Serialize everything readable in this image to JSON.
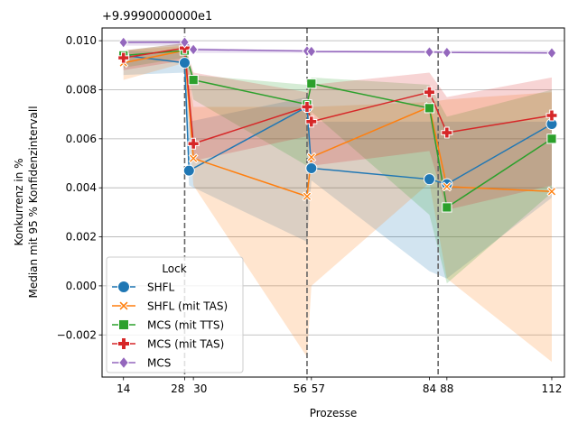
{
  "chart_data": {
    "type": "line",
    "offset_label": "+9.9990000000e1",
    "xlabel": "Prozesse",
    "ylabel_line1": "Konkurrenz in %",
    "ylabel_line2": "Median mit 95 % Konfidenzintervall",
    "x_ticks": [
      14,
      28,
      30,
      56,
      57,
      84,
      88,
      112
    ],
    "x_tick_labels": [
      "14",
      "28",
      "30",
      "56",
      "57",
      "84",
      "88",
      "112"
    ],
    "y_ticks": [
      -0.002,
      0.0,
      0.002,
      0.004,
      0.006,
      0.008,
      0.01
    ],
    "y_tick_labels": [
      "−0.002",
      "0.000",
      "0.002",
      "0.004",
      "0.006",
      "0.008",
      "0.010"
    ],
    "xlim": [
      9.1,
      114.9
    ],
    "ylim": [
      -0.00372,
      0.01052
    ],
    "vlines": [
      28,
      56,
      86
    ],
    "grid": "horizontal",
    "legend": {
      "title": "Lock",
      "position": "lower-left"
    },
    "series": [
      {
        "name": "SHFL",
        "color": "#1f77b4",
        "marker": "circle",
        "x": [
          14,
          28,
          29,
          56,
          57,
          84,
          88,
          112
        ],
        "y": [
          0.0094,
          0.0091,
          0.0047,
          0.0073,
          0.0048,
          0.00435,
          0.00415,
          0.0066
        ],
        "lo": [
          0.0086,
          0.0087,
          0.0041,
          0.0018,
          0.0043,
          0.0006,
          0.0003,
          0.0036
        ],
        "hi": [
          0.0096,
          0.0095,
          0.0067,
          0.0077,
          0.0067,
          0.0067,
          0.0067,
          0.0067
        ]
      },
      {
        "name": "SHFL (mit TAS)",
        "color": "#ff7f0e",
        "marker": "x",
        "x": [
          14,
          28,
          30,
          56,
          57,
          84,
          88,
          112
        ],
        "y": [
          0.0091,
          0.0096,
          0.0052,
          0.00365,
          0.00525,
          0.0073,
          0.00405,
          0.00385
        ],
        "lo": [
          0.0084,
          0.0091,
          0.0041,
          -0.0029,
          0.0,
          0.0042,
          0.0003,
          -0.0031
        ],
        "hi": [
          0.0096,
          0.0098,
          0.0073,
          0.0073,
          0.0073,
          0.0075,
          0.0076,
          0.0079
        ]
      },
      {
        "name": "MCS (mit TTS)",
        "color": "#2ca02c",
        "marker": "square",
        "x": [
          14,
          28,
          30,
          56,
          57,
          84,
          88,
          112
        ],
        "y": [
          0.0094,
          0.0096,
          0.0084,
          0.0074,
          0.00825,
          0.00725,
          0.0032,
          0.006
        ],
        "lo": [
          0.0089,
          0.0093,
          0.0076,
          0.0049,
          0.0071,
          0.0029,
          0.0001,
          0.0038
        ],
        "hi": [
          0.0096,
          0.0099,
          0.0086,
          0.0082,
          0.0085,
          0.0082,
          0.0069,
          0.008
        ]
      },
      {
        "name": "MCS (mit TAS)",
        "color": "#d62728",
        "marker": "plus",
        "x": [
          14,
          28,
          30,
          56,
          57,
          84,
          88,
          112
        ],
        "y": [
          0.0093,
          0.0097,
          0.0058,
          0.0073,
          0.0067,
          0.0079,
          0.00625,
          0.00695
        ],
        "lo": [
          0.0088,
          0.0092,
          0.0051,
          0.0061,
          0.0049,
          0.0055,
          0.0031,
          0.0041
        ],
        "hi": [
          0.0096,
          0.0099,
          0.0087,
          0.0079,
          0.0082,
          0.0087,
          0.0077,
          0.0085
        ]
      },
      {
        "name": "MCS",
        "color": "#9467bd",
        "marker": "diamond",
        "x": [
          14,
          28,
          30,
          56,
          57,
          84,
          88,
          112
        ],
        "y": [
          0.00993,
          0.00994,
          0.00964,
          0.00958,
          0.00956,
          0.00954,
          0.00952,
          0.0095
        ],
        "lo": [
          0.0098,
          0.0098,
          0.0095,
          0.0095,
          0.0095,
          0.0095,
          0.0095,
          0.0095
        ],
        "hi": [
          0.01,
          0.01,
          0.0097,
          0.0096,
          0.0096,
          0.0096,
          0.0096,
          0.0096
        ]
      }
    ]
  }
}
